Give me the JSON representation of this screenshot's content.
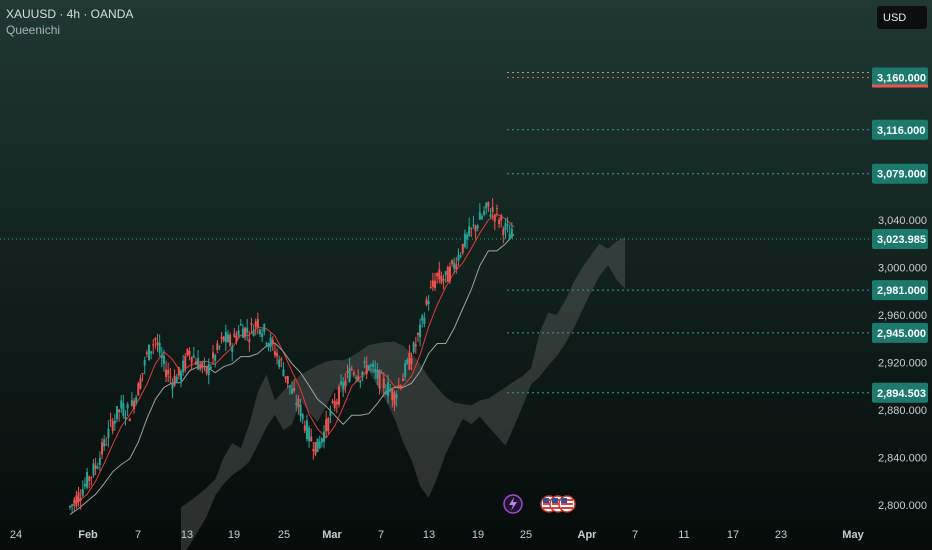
{
  "header": {
    "title": "XAUUSD · 4h · OANDA",
    "indicator": "Queenichi"
  },
  "currency_button": "USD",
  "colors": {
    "up": "#26a69a",
    "down": "#ef5350",
    "level_line": "#26a69a",
    "level_tag": "#1b7a6c",
    "resistance": "#ef5350",
    "cloud": "#7a7a7a",
    "kijun": "#9aa3a0",
    "tenkan": "#e53935"
  },
  "events": {
    "lightning_icon": "lightning-icon",
    "flag_icons": [
      "us-flag-icon",
      "us-flag-icon",
      "us-flag-icon"
    ]
  },
  "chart_data": {
    "type": "candlestick",
    "symbol": "XAUUSD",
    "timeframe": "4h",
    "ylim": [
      2780,
      3220
    ],
    "y_ticks": [
      "2,800.000",
      "2,840.000",
      "2,880.000",
      "2,920.000",
      "2,960.000",
      "3,000.000",
      "3,040.000"
    ],
    "x_ticks": [
      "24",
      "Feb",
      "7",
      "13",
      "19",
      "25",
      "Mar",
      "7",
      "13",
      "19",
      "25",
      "Apr",
      "7",
      "11",
      "17",
      "23",
      "May"
    ],
    "x_ticks_bold": [
      "Feb",
      "Mar",
      "Apr",
      "May"
    ],
    "current_price": {
      "label": "3,023.985",
      "value": 3023.985
    },
    "levels": [
      {
        "label": "3,160.000",
        "value": 3160.0,
        "style": "resistance"
      },
      {
        "label": "3,116.000",
        "value": 3116.0,
        "style": "target"
      },
      {
        "label": "3,079.000",
        "value": 3079.0,
        "style": "target"
      },
      {
        "label": "2,981.000",
        "value": 2981.0,
        "style": "support"
      },
      {
        "label": "2,945.000",
        "value": 2945.0,
        "style": "support"
      },
      {
        "label": "2,894.503",
        "value": 2894.503,
        "style": "support"
      }
    ],
    "price_path": [
      [
        0,
        2798
      ],
      [
        2,
        2808
      ],
      [
        4,
        2820
      ],
      [
        6,
        2832
      ],
      [
        8,
        2850
      ],
      [
        10,
        2870
      ],
      [
        12,
        2882
      ],
      [
        14,
        2878
      ],
      [
        16,
        2898
      ],
      [
        18,
        2925
      ],
      [
        20,
        2940
      ],
      [
        22,
        2918
      ],
      [
        24,
        2905
      ],
      [
        26,
        2910
      ],
      [
        28,
        2930
      ],
      [
        30,
        2920
      ],
      [
        32,
        2912
      ],
      [
        34,
        2925
      ],
      [
        36,
        2940
      ],
      [
        38,
        2936
      ],
      [
        40,
        2950
      ],
      [
        42,
        2945
      ],
      [
        44,
        2955
      ],
      [
        46,
        2942
      ],
      [
        48,
        2930
      ],
      [
        50,
        2915
      ],
      [
        52,
        2895
      ],
      [
        54,
        2880
      ],
      [
        56,
        2858
      ],
      [
        58,
        2848
      ],
      [
        60,
        2865
      ],
      [
        62,
        2885
      ],
      [
        64,
        2900
      ],
      [
        66,
        2915
      ],
      [
        68,
        2910
      ],
      [
        70,
        2918
      ],
      [
        72,
        2908
      ],
      [
        74,
        2900
      ],
      [
        76,
        2892
      ],
      [
        78,
        2908
      ],
      [
        80,
        2925
      ],
      [
        82,
        2945
      ],
      [
        84,
        2975
      ],
      [
        86,
        2992
      ],
      [
        88,
        2990
      ],
      [
        90,
        3002
      ],
      [
        92,
        3018
      ],
      [
        94,
        3030
      ],
      [
        96,
        3040
      ],
      [
        98,
        3050
      ],
      [
        100,
        3044
      ],
      [
        102,
        3032
      ],
      [
        104,
        3024
      ]
    ],
    "x_range": [
      -22,
      228
    ]
  }
}
